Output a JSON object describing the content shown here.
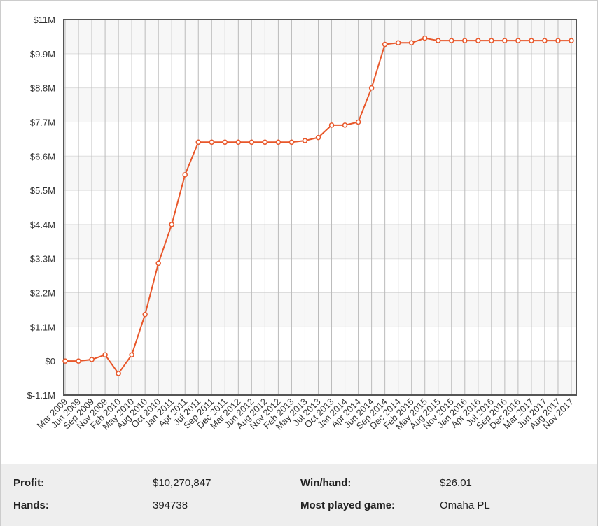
{
  "chart_data": {
    "type": "line",
    "categories": [
      "Mar 2009",
      "Jun 2009",
      "Sep 2009",
      "Nov 2009",
      "Feb 2010",
      "May 2010",
      "Aug 2010",
      "Oct 2010",
      "Jan 2011",
      "Apr 2011",
      "Jul 2011",
      "Sep 2011",
      "Dec 2011",
      "Mar 2012",
      "Jun 2012",
      "Aug 2012",
      "Nov 2012",
      "Feb 2013",
      "May 2013",
      "Jul 2013",
      "Oct 2013",
      "Jan 2014",
      "Apr 2014",
      "Jun 2014",
      "Sep 2014",
      "Dec 2014",
      "Feb 2015",
      "May 2015",
      "Aug 2015",
      "Nov 2015",
      "Jan 2016",
      "Apr 2016",
      "Jul 2016",
      "Sep 2016",
      "Dec 2016",
      "Mar 2017",
      "Jun 2017",
      "Aug 2017",
      "Nov 2017"
    ],
    "series": [
      {
        "name": "Profit",
        "color": "#e8572a",
        "values": [
          0,
          0,
          50000,
          200000,
          -400000,
          200000,
          1500000,
          3150000,
          4400000,
          6000000,
          7050000,
          7050000,
          7050000,
          7050000,
          7050000,
          7050000,
          7050000,
          7050000,
          7100000,
          7200000,
          7600000,
          7600000,
          7700000,
          8800000,
          10200000,
          10250000,
          10250000,
          10400000,
          10320000,
          10320000,
          10320000,
          10320000,
          10320000,
          10320000,
          10320000,
          10320000,
          10320000,
          10320000,
          10320000
        ]
      }
    ],
    "ylim": [
      -1100000,
      11000000
    ],
    "yticks": [
      {
        "value": -1100000,
        "label": "$-1.1M"
      },
      {
        "value": 0,
        "label": "$0"
      },
      {
        "value": 1100000,
        "label": "$1.1M"
      },
      {
        "value": 2200000,
        "label": "$2.2M"
      },
      {
        "value": 3300000,
        "label": "$3.3M"
      },
      {
        "value": 4400000,
        "label": "$4.4M"
      },
      {
        "value": 5500000,
        "label": "$5.5M"
      },
      {
        "value": 6600000,
        "label": "$6.6M"
      },
      {
        "value": 7700000,
        "label": "$7.7M"
      },
      {
        "value": 8800000,
        "label": "$8.8M"
      },
      {
        "value": 9900000,
        "label": "$9.9M"
      },
      {
        "value": 11000000,
        "label": "$11M"
      }
    ],
    "grid": true
  },
  "stats": [
    {
      "label": "Profit:",
      "value": "$10,270,847"
    },
    {
      "label": "Win/hand:",
      "value": "$26.01"
    },
    {
      "label": "Hands:",
      "value": "394738"
    },
    {
      "label": "Most played game:",
      "value": "Omaha PL"
    }
  ]
}
